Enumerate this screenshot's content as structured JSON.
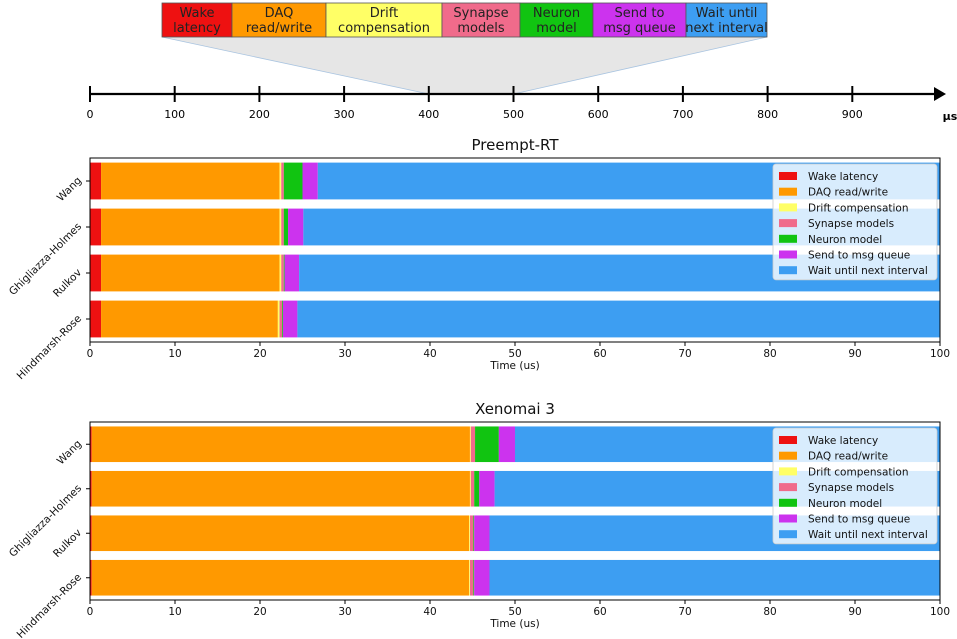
{
  "colors": {
    "wake": "#ee1111",
    "daq": "#ff9900",
    "drift": "#ffff66",
    "synapse": "#f06b8b",
    "neuron": "#11c411",
    "send": "#cc33ee",
    "wait": "#3d9ef2"
  },
  "header": {
    "segments": [
      {
        "lines": [
          "Wake",
          "latency"
        ],
        "color_key": "wake"
      },
      {
        "lines": [
          "DAQ",
          "read/write"
        ],
        "color_key": "daq"
      },
      {
        "lines": [
          "Drift",
          "compensation"
        ],
        "color_key": "drift"
      },
      {
        "lines": [
          "Synapse",
          "models"
        ],
        "color_key": "synapse"
      },
      {
        "lines": [
          "Neuron",
          "model"
        ],
        "color_key": "neuron"
      },
      {
        "lines": [
          "Send to",
          "msg queue"
        ],
        "color_key": "send"
      },
      {
        "lines": [
          "Wait until",
          "next interval"
        ],
        "color_key": "wait"
      }
    ],
    "timeline": {
      "unit": "µs",
      "ticks": [
        0,
        100,
        200,
        300,
        400,
        500,
        600,
        700,
        800,
        900
      ],
      "range": [
        0,
        1000
      ],
      "zoom_from": 400,
      "zoom_to": 500
    }
  },
  "chart_data": [
    {
      "type": "bar",
      "orientation": "horizontal",
      "stacked": true,
      "title": "Preempt-RT",
      "xlabel": "Time (us)",
      "ylabel": "",
      "xlim": [
        0,
        100
      ],
      "xticks": [
        0,
        10,
        20,
        30,
        40,
        50,
        60,
        70,
        80,
        90,
        100
      ],
      "categories": [
        "Wang",
        "Ghigliazza-Holmes",
        "Rulkov",
        "Hindmarsh-Rose"
      ],
      "series": [
        {
          "name": "Wake latency",
          "color_key": "wake",
          "values": [
            1.3,
            1.3,
            1.3,
            1.3
          ]
        },
        {
          "name": "DAQ read/write",
          "color_key": "daq",
          "values": [
            21.0,
            21.0,
            21.0,
            20.8
          ]
        },
        {
          "name": "Drift compensation",
          "color_key": "drift",
          "values": [
            0.2,
            0.2,
            0.2,
            0.2
          ]
        },
        {
          "name": "Synapse models",
          "color_key": "synapse",
          "values": [
            0.3,
            0.3,
            0.3,
            0.3
          ]
        },
        {
          "name": "Neuron model",
          "color_key": "neuron",
          "values": [
            2.2,
            0.5,
            0.1,
            0.1
          ]
        },
        {
          "name": "Send to msg queue",
          "color_key": "send",
          "values": [
            1.8,
            1.8,
            1.7,
            1.7
          ]
        },
        {
          "name": "Wait until next interval",
          "color_key": "wait",
          "values": [
            73.2,
            74.9,
            75.4,
            75.6
          ]
        }
      ],
      "legend_position": "upper-right"
    },
    {
      "type": "bar",
      "orientation": "horizontal",
      "stacked": true,
      "title": "Xenomai 3",
      "xlabel": "Time (us)",
      "ylabel": "",
      "xlim": [
        0,
        100
      ],
      "xticks": [
        0,
        10,
        20,
        30,
        40,
        50,
        60,
        70,
        80,
        90,
        100
      ],
      "categories": [
        "Wang",
        "Ghigliazza-Holmes",
        "Rulkov",
        "Hindmarsh-Rose"
      ],
      "series": [
        {
          "name": "Wake latency",
          "color_key": "wake",
          "values": [
            0.2,
            0.2,
            0.2,
            0.2
          ]
        },
        {
          "name": "DAQ read/write",
          "color_key": "daq",
          "values": [
            44.5,
            44.5,
            44.4,
            44.4
          ]
        },
        {
          "name": "Drift compensation",
          "color_key": "drift",
          "values": [
            0.1,
            0.1,
            0.1,
            0.1
          ]
        },
        {
          "name": "Synapse models",
          "color_key": "synapse",
          "values": [
            0.5,
            0.4,
            0.4,
            0.4
          ]
        },
        {
          "name": "Neuron model",
          "color_key": "neuron",
          "values": [
            2.8,
            0.6,
            0.1,
            0.1
          ]
        },
        {
          "name": "Send to msg queue",
          "color_key": "send",
          "values": [
            1.9,
            1.8,
            1.8,
            1.8
          ]
        },
        {
          "name": "Wait until next interval",
          "color_key": "wait",
          "values": [
            50.0,
            52.4,
            53.0,
            53.0
          ]
        }
      ],
      "legend_position": "upper-right"
    }
  ]
}
